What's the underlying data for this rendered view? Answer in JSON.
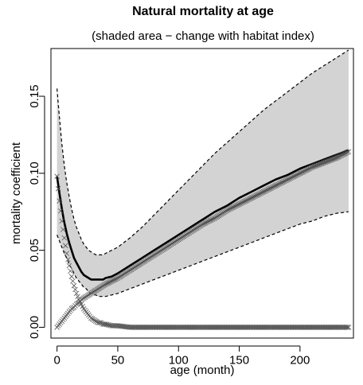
{
  "chart_data": {
    "type": "line",
    "title": "Natural mortality at age",
    "subtitle": "(shaded area − change with habitat index)",
    "xlabel": "age (month)",
    "ylabel": "mortality coefficient",
    "xlim": [
      -5,
      244
    ],
    "ylim": [
      -0.007,
      0.181
    ],
    "x_ticks": [
      0,
      50,
      100,
      150,
      200
    ],
    "x_tick_labels": [
      "0",
      "50",
      "100",
      "150",
      "200"
    ],
    "y_ticks": [
      0,
      0.05,
      0.1,
      0.15
    ],
    "y_tick_labels": [
      "0.00",
      "0.05",
      "0.10",
      "0.15"
    ],
    "grid": false,
    "legend": "none",
    "shaded_band": {
      "description_color": "#d3d3d3",
      "upper": {
        "x": [
          0,
          2,
          4,
          6,
          8,
          10,
          12,
          14,
          16,
          18,
          20,
          22,
          24,
          26,
          28,
          30,
          32,
          34,
          36,
          38,
          40,
          45,
          50,
          60,
          70,
          80,
          90,
          100,
          110,
          120,
          130,
          140,
          150,
          160,
          170,
          180,
          190,
          200,
          210,
          220,
          230,
          240
        ],
        "values": [
          0.155,
          0.136,
          0.119,
          0.105,
          0.094,
          0.085,
          0.077,
          0.07,
          0.065,
          0.061,
          0.057,
          0.054,
          0.052,
          0.05,
          0.049,
          0.048,
          0.047,
          0.047,
          0.047,
          0.047,
          0.048,
          0.05,
          0.052,
          0.058,
          0.065,
          0.073,
          0.081,
          0.089,
          0.097,
          0.105,
          0.113,
          0.12,
          0.127,
          0.134,
          0.141,
          0.147,
          0.153,
          0.159,
          0.165,
          0.17,
          0.175,
          0.18
        ]
      },
      "lower": {
        "x": [
          0,
          2,
          4,
          6,
          8,
          10,
          12,
          14,
          16,
          18,
          20,
          22,
          24,
          26,
          28,
          30,
          32,
          34,
          36,
          38,
          40,
          45,
          50,
          60,
          70,
          80,
          90,
          100,
          110,
          120,
          130,
          140,
          150,
          160,
          170,
          180,
          190,
          200,
          210,
          220,
          230,
          240
        ],
        "values": [
          0.06,
          0.056,
          0.052,
          0.048,
          0.045,
          0.041,
          0.038,
          0.035,
          0.032,
          0.03,
          0.028,
          0.026,
          0.025,
          0.023,
          0.022,
          0.021,
          0.021,
          0.02,
          0.02,
          0.02,
          0.02,
          0.021,
          0.022,
          0.025,
          0.028,
          0.031,
          0.034,
          0.037,
          0.04,
          0.043,
          0.046,
          0.049,
          0.052,
          0.055,
          0.058,
          0.061,
          0.064,
          0.067,
          0.069,
          0.072,
          0.074,
          0.075
        ]
      }
    },
    "series": [
      {
        "x": [
          0,
          2,
          4,
          6,
          8,
          10,
          12,
          14,
          16,
          18,
          20,
          22,
          24,
          26,
          28,
          30,
          32,
          34,
          36,
          38,
          40,
          45,
          50,
          60,
          70,
          80,
          90,
          100,
          110,
          120,
          130,
          140,
          150,
          160,
          170,
          180,
          190,
          200,
          210,
          220,
          230,
          240
        ],
        "values": [
          0.098,
          0.087,
          0.077,
          0.068,
          0.061,
          0.055,
          0.05,
          0.045,
          0.042,
          0.039,
          0.036,
          0.034,
          0.033,
          0.032,
          0.031,
          0.031,
          0.031,
          0.031,
          0.031,
          0.031,
          0.032,
          0.033,
          0.035,
          0.04,
          0.045,
          0.05,
          0.055,
          0.06,
          0.065,
          0.07,
          0.075,
          0.079,
          0.084,
          0.088,
          0.092,
          0.096,
          0.099,
          0.103,
          0.106,
          0.109,
          0.112,
          0.115
        ],
        "style": "solid-thick",
        "color": "#000000"
      },
      {
        "x": [
          0,
          2,
          4,
          6,
          8,
          10,
          12,
          14,
          16,
          18,
          20,
          22,
          24,
          26,
          28,
          30,
          32,
          34,
          36,
          38,
          40,
          45,
          50,
          60,
          70,
          80,
          90,
          100,
          110,
          120,
          130,
          140,
          150,
          160,
          170,
          180,
          190,
          200,
          210,
          220,
          230,
          240
        ],
        "values": [
          0.098,
          0.082,
          0.069,
          0.058,
          0.048,
          0.04,
          0.033,
          0.027,
          0.022,
          0.018,
          0.015,
          0.012,
          0.01,
          0.008,
          0.006,
          0.005,
          0.004,
          0.003,
          0.003,
          0.002,
          0.002,
          0.001,
          0.001,
          0.0,
          0.0,
          0.0,
          0.0,
          0.0,
          0.0,
          0.0,
          0.0,
          0.0,
          0.0,
          0.0,
          0.0,
          0.0,
          0.0,
          0.0,
          0.0,
          0.0,
          0.0,
          0.0
        ],
        "style": "x-markers",
        "color": "#555555"
      },
      {
        "x": [
          0,
          2,
          4,
          6,
          8,
          10,
          12,
          14,
          16,
          18,
          20,
          22,
          24,
          26,
          28,
          30,
          32,
          34,
          36,
          38,
          40,
          45,
          50,
          60,
          70,
          80,
          90,
          100,
          110,
          120,
          130,
          140,
          150,
          160,
          170,
          180,
          190,
          200,
          210,
          220,
          230,
          240
        ],
        "values": [
          0.0,
          0.002,
          0.004,
          0.006,
          0.008,
          0.01,
          0.012,
          0.013,
          0.015,
          0.016,
          0.018,
          0.019,
          0.02,
          0.021,
          0.022,
          0.023,
          0.024,
          0.025,
          0.026,
          0.027,
          0.028,
          0.03,
          0.032,
          0.037,
          0.042,
          0.047,
          0.052,
          0.057,
          0.062,
          0.067,
          0.071,
          0.076,
          0.08,
          0.084,
          0.088,
          0.092,
          0.096,
          0.1,
          0.104,
          0.107,
          0.11,
          0.114
        ],
        "style": "x-markers",
        "color": "#555555"
      }
    ]
  }
}
